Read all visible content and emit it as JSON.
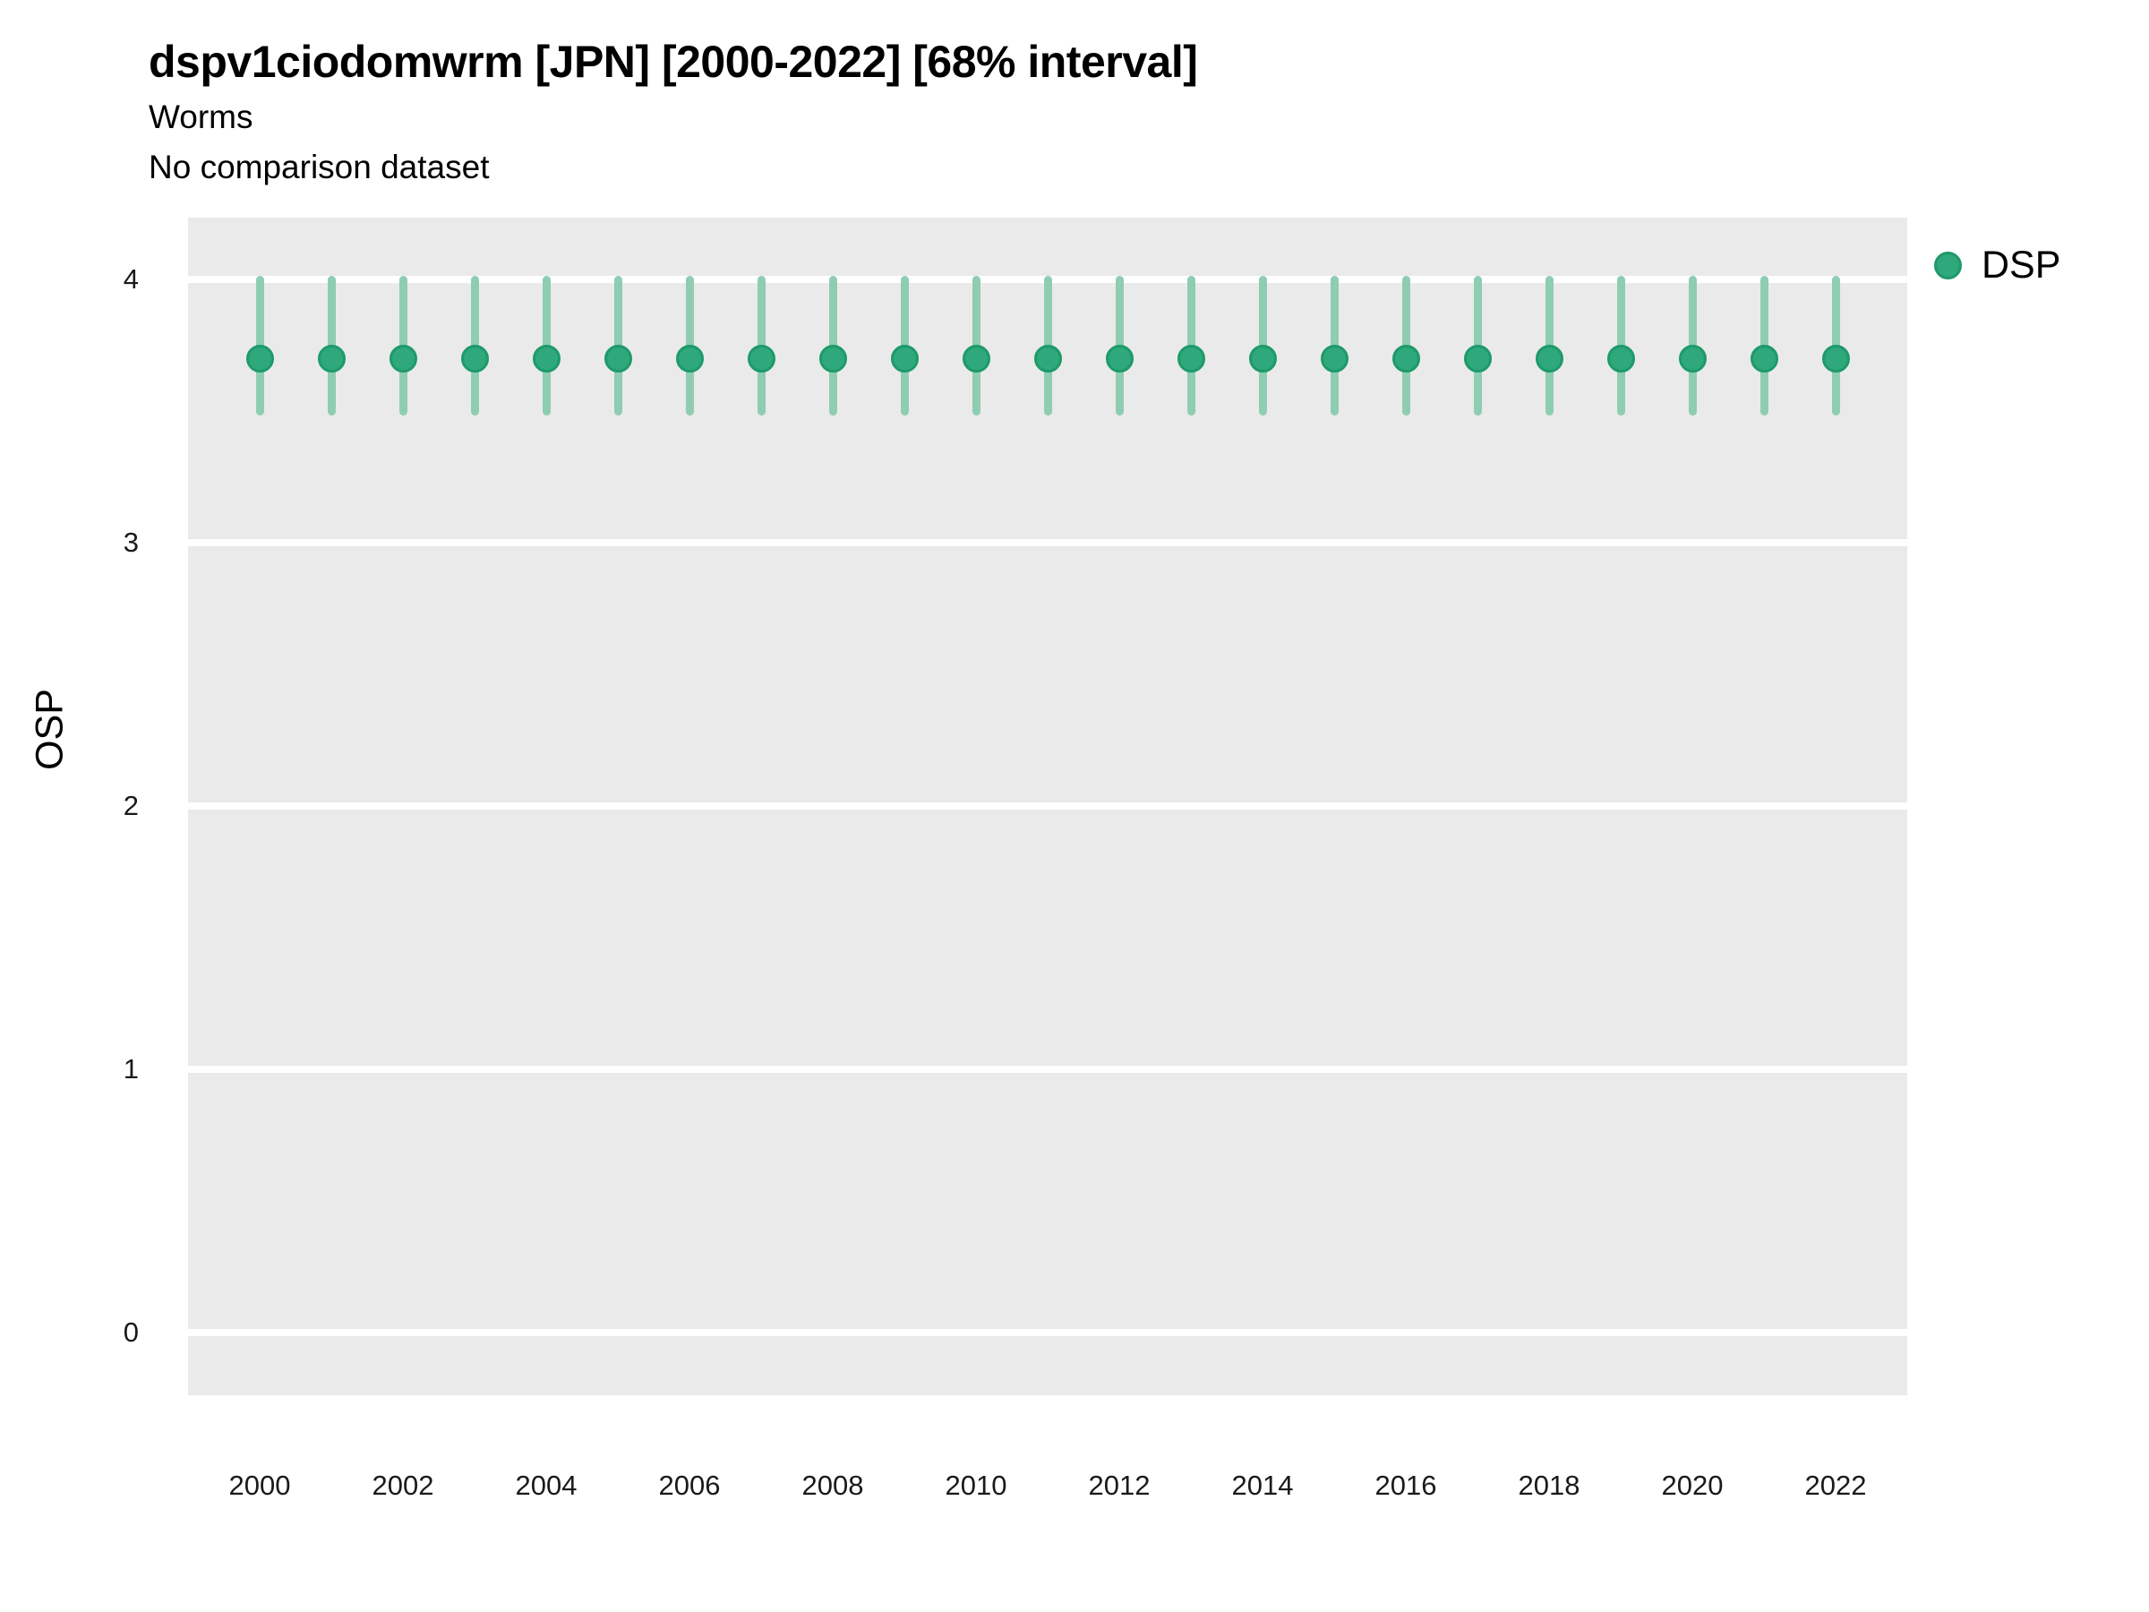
{
  "header": {
    "title": "dspv1ciodomwrm [JPN] [2000-2022] [68% interval]",
    "subtitle1": "Worms",
    "subtitle2": "No comparison dataset"
  },
  "axes": {
    "y_title": "OSP"
  },
  "legend": {
    "items": [
      {
        "label": "DSP"
      }
    ]
  },
  "colors": {
    "panel_background": "#EAEAEA",
    "gridline": "#FFFFFF",
    "point_fill": "#2FA87C",
    "point_stroke": "#1E9A6A",
    "interval_bar": "#8FCDB2",
    "tick_text": "#1A1A1A",
    "text": "#000000"
  },
  "chart_data": {
    "type": "scatter",
    "title": "dspv1ciodomwrm [JPN] [2000-2022] [68% interval]",
    "subtitle": [
      "Worms",
      "No comparison dataset"
    ],
    "xlabel": "",
    "ylabel": "OSP",
    "interval": "68%",
    "grid": "horizontal-major-only",
    "legend_position": "top-right",
    "ylim": [
      -0.24,
      4.22
    ],
    "yticks": [
      0,
      1,
      2,
      3,
      4
    ],
    "xticks": [
      2000,
      2002,
      2004,
      2006,
      2008,
      2010,
      2012,
      2014,
      2016,
      2018,
      2020,
      2022
    ],
    "categories": [
      2000,
      2001,
      2002,
      2003,
      2004,
      2005,
      2006,
      2007,
      2008,
      2009,
      2010,
      2011,
      2012,
      2013,
      2014,
      2015,
      2016,
      2017,
      2018,
      2019,
      2020,
      2021,
      2022
    ],
    "series": [
      {
        "name": "DSP",
        "x": [
          2000,
          2001,
          2002,
          2003,
          2004,
          2005,
          2006,
          2007,
          2008,
          2009,
          2010,
          2011,
          2012,
          2013,
          2014,
          2015,
          2016,
          2017,
          2018,
          2019,
          2020,
          2021,
          2022
        ],
        "y": [
          3.7,
          3.7,
          3.7,
          3.7,
          3.7,
          3.7,
          3.7,
          3.7,
          3.7,
          3.7,
          3.7,
          3.7,
          3.7,
          3.7,
          3.7,
          3.7,
          3.7,
          3.7,
          3.7,
          3.7,
          3.7,
          3.7,
          3.7
        ],
        "y_low": [
          3.5,
          3.5,
          3.5,
          3.5,
          3.5,
          3.5,
          3.5,
          3.5,
          3.5,
          3.5,
          3.5,
          3.5,
          3.5,
          3.5,
          3.5,
          3.5,
          3.5,
          3.5,
          3.5,
          3.5,
          3.5,
          3.5,
          3.5
        ],
        "y_high": [
          4.0,
          4.0,
          4.0,
          4.0,
          4.0,
          4.0,
          4.0,
          4.0,
          4.0,
          4.0,
          4.0,
          4.0,
          4.0,
          4.0,
          4.0,
          4.0,
          4.0,
          4.0,
          4.0,
          4.0,
          4.0,
          4.0,
          4.0
        ]
      }
    ]
  }
}
